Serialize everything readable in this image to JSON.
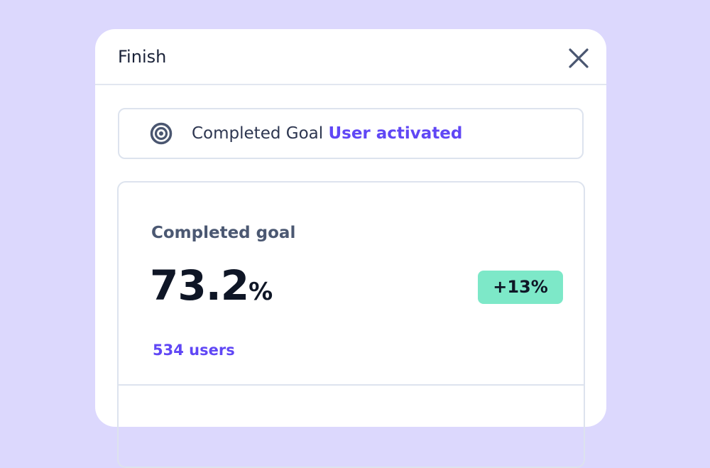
{
  "panel": {
    "title": "Finish",
    "goal_banner": {
      "label": "Completed Goal",
      "goal_name": "User activated"
    },
    "stat_card": {
      "label": "Completed goal",
      "value": "73.2",
      "unit": "%",
      "change": "+13%",
      "users": "534 users"
    }
  }
}
